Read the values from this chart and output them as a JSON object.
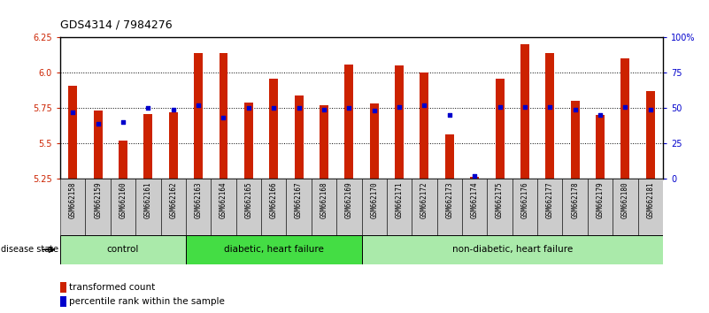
{
  "title": "GDS4314 / 7984276",
  "samples": [
    "GSM662158",
    "GSM662159",
    "GSM662160",
    "GSM662161",
    "GSM662162",
    "GSM662163",
    "GSM662164",
    "GSM662165",
    "GSM662166",
    "GSM662167",
    "GSM662168",
    "GSM662169",
    "GSM662170",
    "GSM662171",
    "GSM662172",
    "GSM662173",
    "GSM662174",
    "GSM662175",
    "GSM662176",
    "GSM662177",
    "GSM662178",
    "GSM662179",
    "GSM662180",
    "GSM662181"
  ],
  "red_bars": [
    5.91,
    5.73,
    5.52,
    5.71,
    5.72,
    6.14,
    6.14,
    5.79,
    5.96,
    5.84,
    5.77,
    6.06,
    5.78,
    6.05,
    6.0,
    5.56,
    5.26,
    5.96,
    6.2,
    6.14,
    5.8,
    5.7,
    6.1,
    5.87
  ],
  "blue_dots": [
    5.72,
    5.64,
    5.65,
    5.75,
    5.74,
    5.77,
    5.68,
    5.75,
    5.75,
    5.75,
    5.74,
    5.75,
    5.73,
    5.76,
    5.77,
    5.7,
    5.265,
    5.76,
    5.76,
    5.76,
    5.74,
    5.7,
    5.76,
    5.74
  ],
  "groups": [
    {
      "label": "control",
      "start": 0,
      "end": 4,
      "color": "#AAEAAA"
    },
    {
      "label": "diabetic, heart failure",
      "start": 5,
      "end": 11,
      "color": "#44DD44"
    },
    {
      "label": "non-diabetic, heart failure",
      "start": 12,
      "end": 23,
      "color": "#AAEAAA"
    }
  ],
  "ymin": 5.25,
  "ymax": 6.25,
  "yticks_left": [
    5.25,
    5.5,
    5.75,
    6.0,
    6.25
  ],
  "yticks_right_vals": [
    0,
    25,
    50,
    75,
    100
  ],
  "yticks_right_pos": [
    5.25,
    5.5,
    5.75,
    6.0,
    6.25
  ],
  "bar_color": "#CC2200",
  "dot_color": "#0000CC",
  "bg_color": "#FFFFFF",
  "plot_bg": "#FFFFFF",
  "grid_color": "#000000",
  "label_color_left": "#CC2200",
  "label_color_right": "#0000CC",
  "tick_label_bg": "#CCCCCC"
}
